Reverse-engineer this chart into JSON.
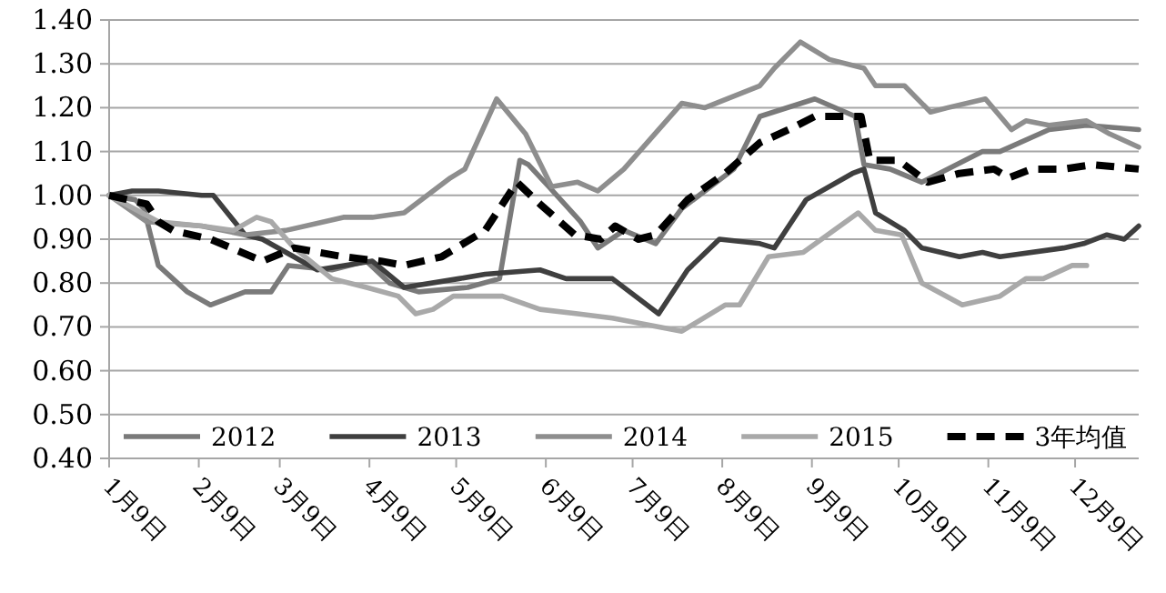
{
  "chart_data": {
    "type": "line",
    "xlim": [
      "--01-09",
      "--12-31"
    ],
    "xticks": [
      {
        "value": "--01-09",
        "label": "1月9日"
      },
      {
        "value": "--02-09",
        "label": "2月9日"
      },
      {
        "value": "--03-09",
        "label": "3月9日"
      },
      {
        "value": "--04-09",
        "label": "4月9日"
      },
      {
        "value": "--05-09",
        "label": "5月9日"
      },
      {
        "value": "--06-09",
        "label": "6月9日"
      },
      {
        "value": "--07-09",
        "label": "7月9日"
      },
      {
        "value": "--08-09",
        "label": "8月9日"
      },
      {
        "value": "--09-09",
        "label": "9月9日"
      },
      {
        "value": "--10-09",
        "label": "10月9日"
      },
      {
        "value": "--11-09",
        "label": "11月9日"
      },
      {
        "value": "--12-09",
        "label": "12月9日"
      }
    ],
    "ylim": [
      0.4,
      1.4
    ],
    "yticks": [
      {
        "value": 0.4,
        "label": "0.40"
      },
      {
        "value": 0.5,
        "label": "0.50"
      },
      {
        "value": 0.6,
        "label": "0.60"
      },
      {
        "value": 0.7,
        "label": "0.70"
      },
      {
        "value": 0.8,
        "label": "0.80"
      },
      {
        "value": 0.9,
        "label": "0.90"
      },
      {
        "value": 1.0,
        "label": "1.00"
      },
      {
        "value": 1.1,
        "label": "1.10"
      },
      {
        "value": 1.2,
        "label": "1.20"
      },
      {
        "value": 1.3,
        "label": "1.30"
      },
      {
        "value": 1.4,
        "label": "1.40"
      }
    ],
    "grid": "y",
    "legend": "bottom",
    "series": [
      {
        "name": "2012",
        "color": "#7a7a7a",
        "line_style": "solid",
        "x": [
          "--01-09",
          "--01-18",
          "--01-21",
          "--01-26",
          "--02-05",
          "--02-13",
          "--02-25",
          "--03-06",
          "--03-12",
          "--03-27",
          "--04-08",
          "--04-16",
          "--04-26",
          "--05-13",
          "--05-24",
          "--05-31",
          "--06-03",
          "--06-10",
          "--06-21",
          "--06-27",
          "--07-06",
          "--07-17",
          "--07-26",
          "--08-13",
          "--08-22",
          "--09-10",
          "--09-24",
          "--09-27",
          "--10-06",
          "--10-17",
          "--11-07",
          "--11-13",
          "--11-30",
          "--12-13",
          "--12-31"
        ],
        "values": [
          1.0,
          0.99,
          0.97,
          0.84,
          0.78,
          0.75,
          0.78,
          0.78,
          0.84,
          0.83,
          0.85,
          0.8,
          0.78,
          0.79,
          0.81,
          1.08,
          1.07,
          1.02,
          0.94,
          0.88,
          0.92,
          0.89,
          0.97,
          1.06,
          1.18,
          1.22,
          1.18,
          1.07,
          1.06,
          1.03,
          1.1,
          1.1,
          1.15,
          1.16,
          1.15
        ]
      },
      {
        "name": "2013",
        "color": "#3f3f3f",
        "line_style": "solid",
        "x": [
          "--01-09",
          "--01-17",
          "--01-26",
          "--02-10",
          "--02-14",
          "--02-25",
          "--03-03",
          "--03-22",
          "--04-10",
          "--04-21",
          "--05-10",
          "--05-19",
          "--06-07",
          "--06-16",
          "--07-02",
          "--07-18",
          "--07-28",
          "--08-08",
          "--08-22",
          "--08-27",
          "--09-07",
          "--09-23",
          "--09-27",
          "--10-01",
          "--10-11",
          "--10-17",
          "--10-30",
          "--11-07",
          "--11-13",
          "--12-05",
          "--12-12",
          "--12-20",
          "--12-26",
          "--12-31"
        ],
        "values": [
          1.0,
          1.01,
          1.01,
          1.0,
          1.0,
          0.91,
          0.9,
          0.83,
          0.85,
          0.79,
          0.81,
          0.82,
          0.83,
          0.81,
          0.81,
          0.73,
          0.83,
          0.9,
          0.89,
          0.88,
          0.99,
          1.05,
          1.06,
          0.96,
          0.92,
          0.88,
          0.86,
          0.87,
          0.86,
          0.88,
          0.89,
          0.91,
          0.9,
          0.93
        ]
      },
      {
        "name": "2014",
        "color": "#8e8e8e",
        "line_style": "solid",
        "x": [
          "--01-09",
          "--01-22",
          "--02-10",
          "--02-25",
          "--03-11",
          "--03-31",
          "--04-10",
          "--04-21",
          "--05-07",
          "--05-12",
          "--05-23",
          "--06-02",
          "--06-11",
          "--06-20",
          "--06-27",
          "--07-06",
          "--07-26",
          "--08-03",
          "--08-22",
          "--08-27",
          "--09-05",
          "--09-15",
          "--09-27",
          "--10-01",
          "--10-11",
          "--10-20",
          "--10-26",
          "--11-08",
          "--11-17",
          "--11-22",
          "--11-30",
          "--12-13",
          "--12-21",
          "--12-31"
        ],
        "values": [
          1.0,
          0.94,
          0.93,
          0.91,
          0.92,
          0.95,
          0.95,
          0.96,
          1.04,
          1.06,
          1.22,
          1.14,
          1.02,
          1.03,
          1.01,
          1.06,
          1.21,
          1.2,
          1.25,
          1.29,
          1.35,
          1.31,
          1.29,
          1.25,
          1.25,
          1.19,
          1.2,
          1.22,
          1.15,
          1.17,
          1.16,
          1.17,
          1.14,
          1.11
        ]
      },
      {
        "name": "2015",
        "color": "#a9a9a9",
        "line_style": "solid",
        "x": [
          "--01-09",
          "--01-26",
          "--02-10",
          "--02-21",
          "--03-01",
          "--03-06",
          "--03-14",
          "--03-27",
          "--04-08",
          "--04-19",
          "--04-25",
          "--05-01",
          "--05-08",
          "--05-25",
          "--06-07",
          "--06-20",
          "--07-02",
          "--07-26",
          "--08-10",
          "--08-15",
          "--08-25",
          "--09-06",
          "--09-25",
          "--10-01",
          "--10-10",
          "--10-17",
          "--10-31",
          "--11-13",
          "--11-22",
          "--11-28",
          "--12-08",
          "--12-13"
        ],
        "values": [
          1.0,
          0.94,
          0.93,
          0.92,
          0.95,
          0.94,
          0.88,
          0.81,
          0.79,
          0.77,
          0.73,
          0.74,
          0.77,
          0.77,
          0.74,
          0.73,
          0.72,
          0.69,
          0.75,
          0.75,
          0.86,
          0.87,
          0.96,
          0.92,
          0.91,
          0.8,
          0.75,
          0.77,
          0.81,
          0.81,
          0.84,
          0.84
        ]
      },
      {
        "name": "3年均值",
        "color": "#000000",
        "line_style": "dashed",
        "x": [
          "--01-09",
          "--01-22",
          "--01-26",
          "--01-31",
          "--02-13",
          "--03-03",
          "--03-14",
          "--03-31",
          "--04-13",
          "--04-21",
          "--05-04",
          "--05-19",
          "--05-30",
          "--06-07",
          "--06-19",
          "--06-28",
          "--07-03",
          "--07-11",
          "--07-17",
          "--07-28",
          "--08-10",
          "--08-22",
          "--09-01",
          "--09-10",
          "--09-26",
          "--09-29",
          "--10-09",
          "--10-19",
          "--10-30",
          "--11-11",
          "--11-16",
          "--11-24",
          "--12-05",
          "--12-15",
          "--12-31"
        ],
        "values": [
          1.0,
          0.98,
          0.94,
          0.92,
          0.9,
          0.85,
          0.88,
          0.86,
          0.85,
          0.84,
          0.86,
          0.92,
          1.03,
          0.98,
          0.91,
          0.9,
          0.93,
          0.9,
          0.91,
          0.99,
          1.05,
          1.12,
          1.15,
          1.18,
          1.18,
          1.08,
          1.08,
          1.03,
          1.05,
          1.06,
          1.04,
          1.06,
          1.06,
          1.07,
          1.06
        ]
      }
    ]
  }
}
